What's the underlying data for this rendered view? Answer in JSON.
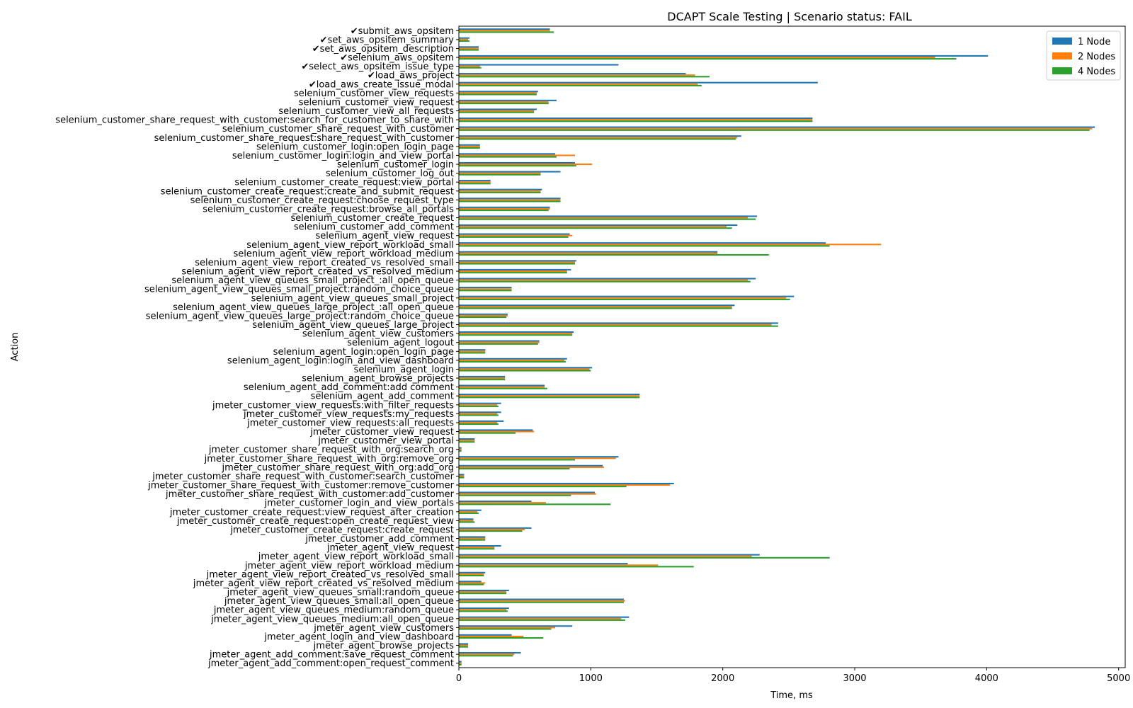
{
  "chart_data": {
    "type": "bar",
    "orientation": "horizontal",
    "title": "DCAPT Scale Testing | Scenario status: FAIL",
    "xlabel": "Time, ms",
    "ylabel": "Action",
    "xlim": [
      0,
      5050
    ],
    "xticks": [
      0,
      1000,
      2000,
      3000,
      4000,
      5000
    ],
    "legend_position": "top-right",
    "grid": false,
    "colors": {
      "1 Node": "#1f77b4",
      "2 Nodes": "#ff7f0e",
      "4 Nodes": "#2ca02c"
    },
    "categories": [
      "✔submit_aws_opsitem",
      "✔set_aws_opsitem_summary",
      "✔set_aws_opsitem_description",
      "✔selenium_aws_opsitem",
      "✔select_aws_opsitem_issue_type",
      "✔load_aws_project",
      "✔load_aws_create_issue_modal",
      "selenium_customer_view_requests",
      "selenium_customer_view_request",
      "selenium_customer_view_all_requests",
      "selenium_customer_share_request_with_customer:search_for_customer_to_share_with",
      "selenium_customer_share_request_with_customer",
      "selenium_customer_share_request:share_request_with_customer",
      "selenium_customer_login:open_login_page",
      "selenium_customer_login:login_and_view_portal",
      "selenium_customer_login",
      "selenium_customer_log_out",
      "selenium_customer_create_request:view_portal",
      "selenium_customer_create_request:create_and_submit_request",
      "selenium_customer_create_request:choose_request_type",
      "selenium_customer_create_request:browse_all_portals",
      "selenium_customer_create_request",
      "selenium_customer_add_comment",
      "selenium_agent_view_request",
      "selenium_agent_view_report_workload_small",
      "selenium_agent_view_report_workload_medium",
      "selenium_agent_view_report_created_vs_resolved_small",
      "selenium_agent_view_report_created_vs_resolved_medium",
      "selenium_agent_view_queues_small_project_:all_open_queue",
      "selenium_agent_view_queues_small_project:random_choice_queue",
      "selenium_agent_view_queues_small_project",
      "selenium_agent_view_queues_large_project_:all_open_queue",
      "selenium_agent_view_queues_large_project:random_choice_queue",
      "selenium_agent_view_queues_large_project",
      "selenium_agent_view_customers",
      "selenium_agent_logout",
      "selenium_agent_login:open_login_page",
      "selenium_agent_login:login_and_view_dashboard",
      "selenium_agent_login",
      "selenium_agent_browse_projects",
      "selenium_agent_add_comment:add comment",
      "selenium_agent_add_comment",
      "jmeter_customer_view_requests:with_filter_requests",
      "jmeter_customer_view_requests:my_requests",
      "jmeter_customer_view_requests:all_requests",
      "jmeter_customer_view_request",
      "jmeter_customer_view_portal",
      "jmeter_customer_share_request_with_org:search_org",
      "jmeter_customer_share_request_with_org:remove_org",
      "jmeter_customer_share_request_with_org:add_org",
      "jmeter_customer_share_request_with_customer:search_customer",
      "jmeter_customer_share_request_with_customer:remove_customer",
      "jmeter_customer_share_request_with_customer:add_customer",
      "jmeter_customer_login_and_view_portals",
      "jmeter_customer_create_request:view_request_after_creation",
      "jmeter_customer_create_request:open_create_request_view",
      "jmeter_customer_create_request:create_request",
      "jmeter_customer_add_comment",
      "jmeter_agent_view_request",
      "jmeter_agent_view_report_workload_small",
      "jmeter_agent_view_report_workload_medium",
      "jmeter_agent_view_report_created_vs_resolved_small",
      "jmeter_agent_view_report_created_vs_resolved_medium",
      "jmeter_agent_view_queues_small:random_queue",
      "jmeter_agent_view_queues_small:all_open_queue",
      "jmeter_agent_view_queues_medium:random_queue",
      "jmeter_agent_view_queues_medium:all_open_queue",
      "jmeter_agent_view_customers",
      "jmeter_agent_login_and_view_dashboard",
      "jmeter_agent_browse_projects",
      "jmeter_agent_add_comment:save_request_comment",
      "jmeter_agent_add_comment:open_request_comment"
    ],
    "series": [
      {
        "name": "1 Node",
        "values": [
          690,
          80,
          150,
          4010,
          1210,
          1720,
          2720,
          600,
          740,
          590,
          2680,
          4820,
          2140,
          160,
          730,
          880,
          770,
          240,
          630,
          770,
          690,
          2260,
          2110,
          840,
          2780,
          1960,
          890,
          850,
          2250,
          400,
          2540,
          2090,
          370,
          2420,
          870,
          610,
          200,
          820,
          1010,
          350,
          650,
          1370,
          320,
          320,
          340,
          560,
          120,
          20,
          1210,
          1090,
          40,
          1630,
          1030,
          550,
          170,
          110,
          550,
          200,
          320,
          2280,
          1280,
          200,
          170,
          380,
          1250,
          380,
          1290,
          860,
          400,
          70,
          470,
          20
        ]
      },
      {
        "name": "2 Nodes",
        "values": [
          690,
          70,
          150,
          3610,
          160,
          1790,
          1810,
          590,
          680,
          570,
          2680,
          4800,
          2110,
          160,
          880,
          1010,
          620,
          240,
          620,
          770,
          690,
          2190,
          2030,
          860,
          3200,
          1960,
          880,
          820,
          2190,
          400,
          2480,
          2070,
          370,
          2370,
          860,
          610,
          200,
          800,
          990,
          350,
          650,
          1370,
          290,
          290,
          290,
          570,
          120,
          20,
          1190,
          1100,
          40,
          1600,
          1040,
          660,
          140,
          110,
          500,
          200,
          270,
          2220,
          1510,
          190,
          200,
          360,
          1260,
          360,
          1230,
          730,
          490,
          70,
          420,
          20
        ]
      },
      {
        "name": "4 Nodes",
        "values": [
          720,
          80,
          150,
          3770,
          170,
          1900,
          1840,
          590,
          680,
          570,
          2680,
          4780,
          2100,
          160,
          740,
          890,
          620,
          240,
          620,
          770,
          680,
          2250,
          2070,
          830,
          2810,
          2350,
          880,
          820,
          2210,
          400,
          2510,
          2070,
          360,
          2420,
          860,
          600,
          200,
          810,
          1000,
          350,
          670,
          1370,
          300,
          300,
          300,
          430,
          120,
          20,
          880,
          840,
          40,
          1270,
          850,
          1150,
          150,
          120,
          480,
          200,
          270,
          2810,
          1780,
          190,
          190,
          360,
          1250,
          370,
          1260,
          700,
          640,
          70,
          410,
          20
        ]
      }
    ]
  }
}
